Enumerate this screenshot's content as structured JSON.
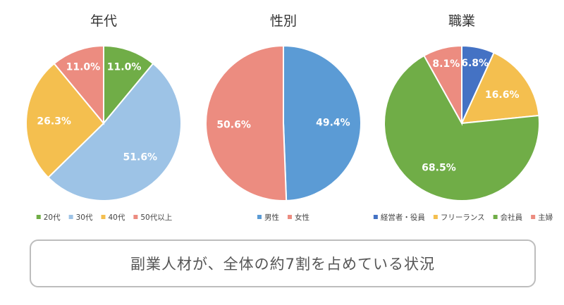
{
  "chart_data": [
    {
      "type": "pie",
      "title": "年代",
      "categories": [
        "20代",
        "30代",
        "40代",
        "50代以上"
      ],
      "values": [
        11.0,
        51.6,
        26.3,
        11.0
      ],
      "labels": [
        "11.0%",
        "51.6%",
        "26.3%",
        "11.0%"
      ],
      "colors": [
        "#70ad47",
        "#9dc3e6",
        "#f4bf4f",
        "#ec8c80"
      ],
      "legend": "bottom"
    },
    {
      "type": "pie",
      "title": "性別",
      "categories": [
        "男性",
        "女性"
      ],
      "values": [
        49.4,
        50.6
      ],
      "labels": [
        "49.4%",
        "50.6%"
      ],
      "colors": [
        "#5b9bd5",
        "#ec8c80"
      ],
      "legend": "bottom"
    },
    {
      "type": "pie",
      "title": "職業",
      "categories": [
        "経営者・役員",
        "フリーランス",
        "会社員",
        "主婦"
      ],
      "values": [
        6.8,
        16.6,
        68.5,
        8.1
      ],
      "labels": [
        "6.8%",
        "16.6%",
        "68.5%",
        "8.1%"
      ],
      "colors": [
        "#4472c4",
        "#f4bf4f",
        "#70ad47",
        "#ec8c80"
      ],
      "legend": "bottom"
    }
  ],
  "caption": "副業人材が、全体の約7割を占めている状況"
}
